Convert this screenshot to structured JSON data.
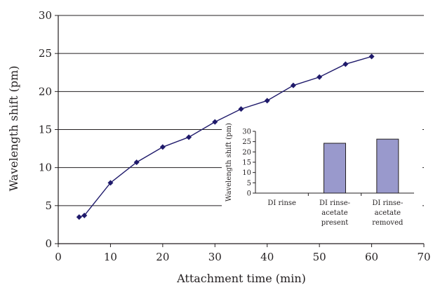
{
  "chart_data": [
    {
      "type": "line",
      "title": "",
      "xlabel": "Attachment time (min)",
      "ylabel": "Wavelength shift (pm)",
      "xlim": [
        0,
        70
      ],
      "ylim": [
        0,
        30
      ],
      "x_ticks": [
        "0",
        "10",
        "20",
        "30",
        "40",
        "50",
        "60",
        "70"
      ],
      "y_ticks": [
        "0",
        "5",
        "10",
        "15",
        "20",
        "25",
        "30"
      ],
      "grid": "horizontal",
      "series": [
        {
          "marker": "diamond",
          "color": "#1f1a6b",
          "x": [
            4,
            5,
            10,
            15,
            20,
            25,
            30,
            35,
            40,
            45,
            50,
            55,
            60
          ],
          "y": [
            3.5,
            3.7,
            8.0,
            10.7,
            12.7,
            14.0,
            16.0,
            17.7,
            18.8,
            20.8,
            21.9,
            23.6,
            24.6
          ]
        }
      ]
    },
    {
      "type": "bar",
      "title": "",
      "ylabel": "Wavelength shift (pm)",
      "ylim": [
        0,
        30
      ],
      "y_ticks": [
        "0",
        "5",
        "10",
        "15",
        "20",
        "25",
        "30"
      ],
      "categories": [
        [
          "DI rinse"
        ],
        [
          "DI rinse-",
          "acetate",
          "present"
        ],
        [
          "DI rinse-",
          "acetate",
          "removed"
        ]
      ],
      "values": [
        0,
        24.2,
        26.2
      ],
      "bar_color": "#9999cc"
    }
  ]
}
